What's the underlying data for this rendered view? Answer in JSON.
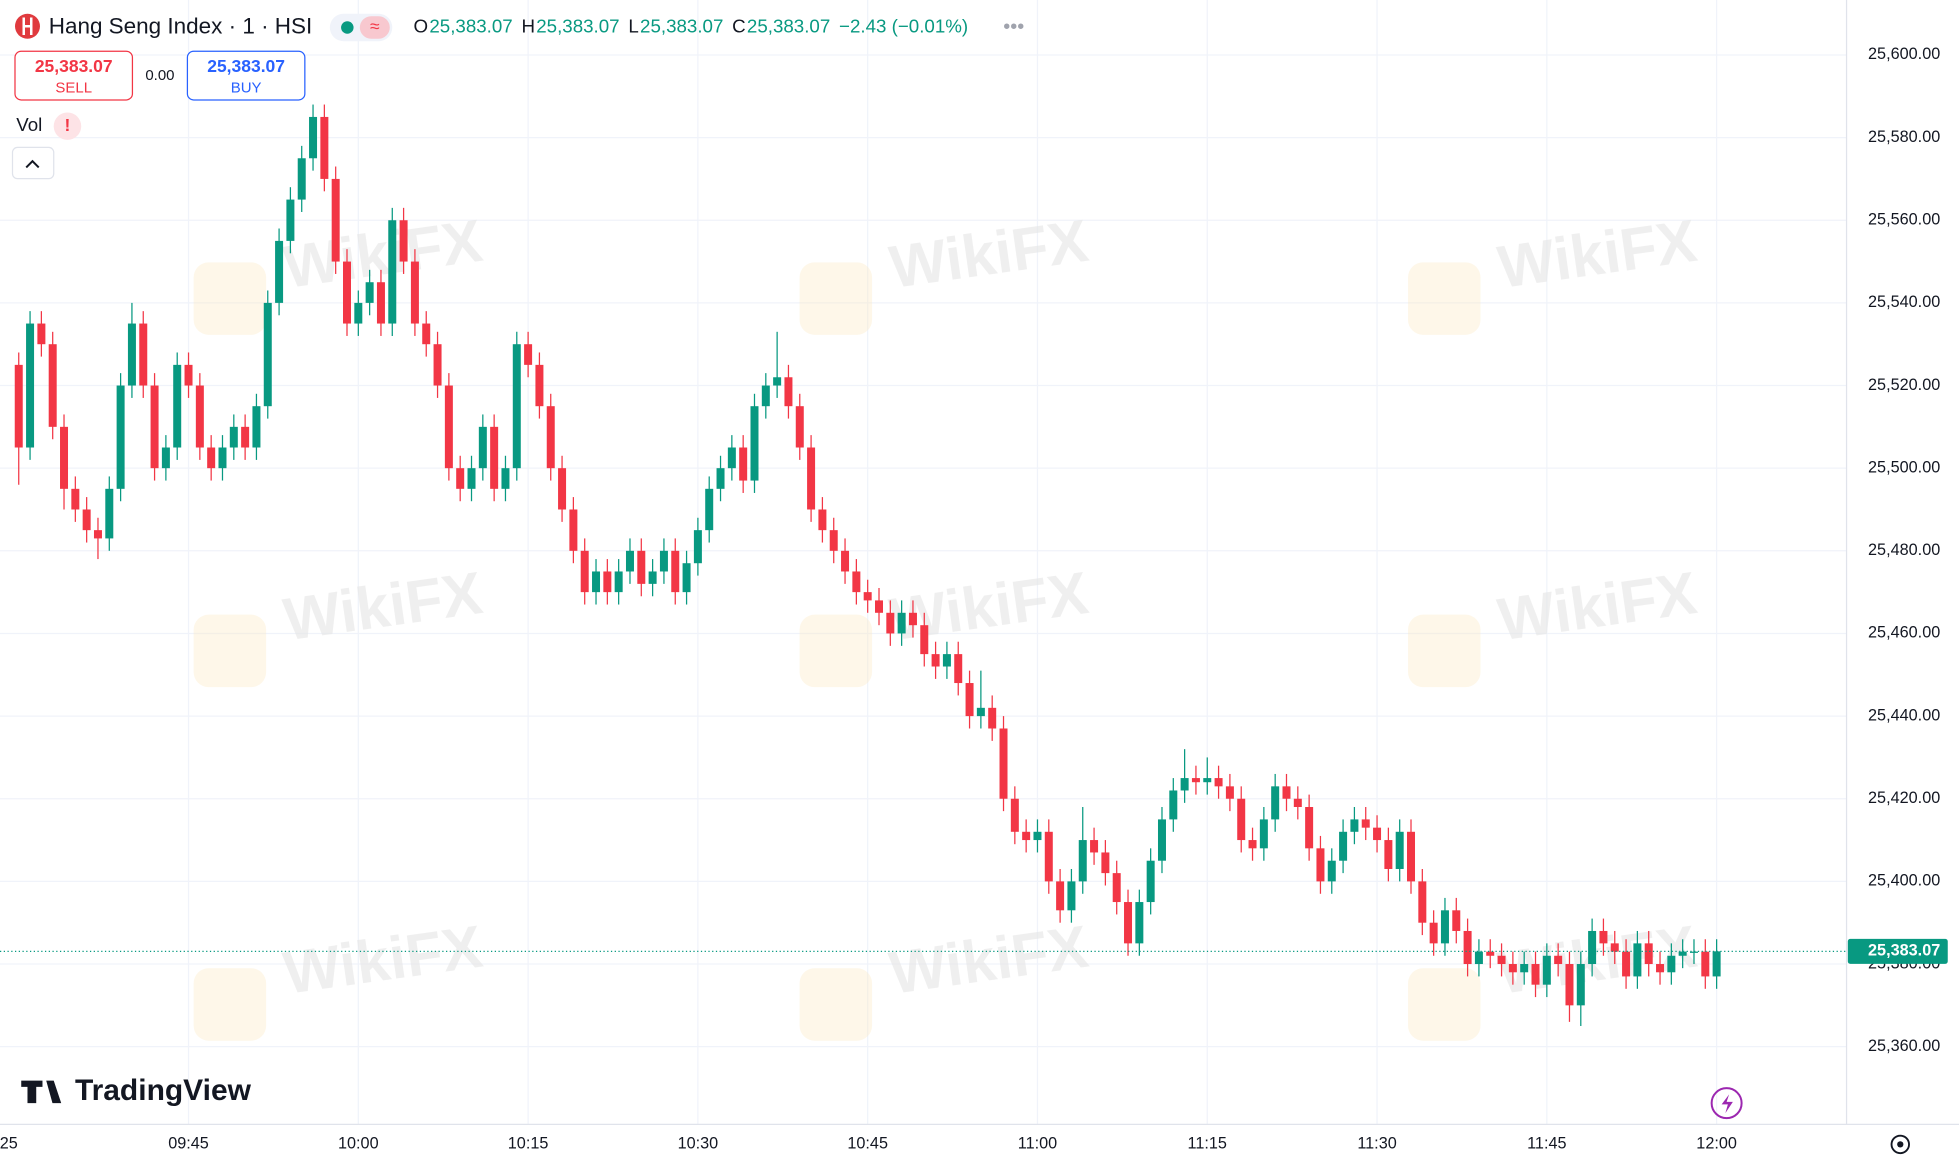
{
  "chart_data": {
    "type": "candlestick",
    "title": "Hang Seng Index · 1 · HSI",
    "ohlc_legend": [
      {
        "key": "O",
        "text": "25,383.07"
      },
      {
        "key": "H",
        "text": "25,383.07"
      },
      {
        "key": "L",
        "text": "25,383.07"
      },
      {
        "key": "C",
        "text": "25,383.07"
      }
    ],
    "change": "−2.43 (−0.01%)",
    "sell_price": "25,383.07",
    "sell_label": "SELL",
    "spread": "0.00",
    "buy_price": "25,383.07",
    "buy_label": "BUY",
    "volume_label": "Vol",
    "volume_alert": "!",
    "brand": "TradingView",
    "watermark": "WikiFX",
    "x_axis_edge_label": "25",
    "up_color": "#089981",
    "down_color": "#f23645",
    "grid": true,
    "last_price": 25383.07,
    "last_price_label": "25,383.07",
    "ylim": [
      25342.7,
      25613.3
    ],
    "yticks": [
      {
        "value": 25360,
        "label": "25,360.00"
      },
      {
        "value": 25380,
        "label": "25,380.00"
      },
      {
        "value": 25400,
        "label": "25,400.00"
      },
      {
        "value": 25420,
        "label": "25,420.00"
      },
      {
        "value": 25440,
        "label": "25,440.00"
      },
      {
        "value": 25460,
        "label": "25,460.00"
      },
      {
        "value": 25480,
        "label": "25,480.00"
      },
      {
        "value": 25500,
        "label": "25,500.00"
      },
      {
        "value": 25520,
        "label": "25,520.00"
      },
      {
        "value": 25540,
        "label": "25,540.00"
      },
      {
        "value": 25560,
        "label": "25,560.00"
      },
      {
        "value": 25580,
        "label": "25,580.00"
      },
      {
        "value": 25600,
        "label": "25,600.00"
      }
    ],
    "categories": [
      null,
      null,
      null,
      null,
      null,
      null,
      null,
      null,
      null,
      null,
      null,
      null,
      null,
      null,
      null,
      "09:45",
      null,
      null,
      null,
      null,
      null,
      null,
      null,
      null,
      null,
      null,
      null,
      null,
      null,
      null,
      "10:00",
      null,
      null,
      null,
      null,
      null,
      null,
      null,
      null,
      null,
      null,
      null,
      null,
      null,
      null,
      "10:15",
      null,
      null,
      null,
      null,
      null,
      null,
      null,
      null,
      null,
      null,
      null,
      null,
      null,
      null,
      "10:30",
      null,
      null,
      null,
      null,
      null,
      null,
      null,
      null,
      null,
      null,
      null,
      null,
      null,
      null,
      "10:45",
      null,
      null,
      null,
      null,
      null,
      null,
      null,
      null,
      null,
      null,
      null,
      null,
      null,
      null,
      "11:00",
      null,
      null,
      null,
      null,
      null,
      null,
      null,
      null,
      null,
      null,
      null,
      null,
      null,
      null,
      "11:15",
      null,
      null,
      null,
      null,
      null,
      null,
      null,
      null,
      null,
      null,
      null,
      null,
      null,
      null,
      "11:30",
      null,
      null,
      null,
      null,
      null,
      null,
      null,
      null,
      null,
      null,
      null,
      null,
      null,
      null,
      "11:45",
      null,
      null,
      null,
      null,
      null,
      null,
      null,
      null,
      null,
      null,
      null,
      null,
      null,
      null,
      "12:00"
    ],
    "open": [
      25525,
      25505,
      25535,
      25530,
      25510,
      25495,
      25490,
      25485,
      25483,
      25495,
      25520,
      25535,
      25520,
      25500,
      25505,
      25525,
      25520,
      25505,
      25500,
      25505,
      25510,
      25505,
      25515,
      25540,
      25555,
      25565,
      25575,
      25585,
      25570,
      25550,
      25535,
      25540,
      25545,
      25535,
      25560,
      25550,
      25535,
      25530,
      25520,
      25500,
      25495,
      25500,
      25510,
      25495,
      25500,
      25530,
      25525,
      25515,
      25500,
      25490,
      25480,
      25470,
      25475,
      25470,
      25475,
      25480,
      25472,
      25475,
      25480,
      25470,
      25477,
      25485,
      25495,
      25500,
      25505,
      25497,
      25515,
      25520,
      25522,
      25515,
      25505,
      25490,
      25485,
      25480,
      25475,
      25470,
      25468,
      25465,
      25460,
      25465,
      25462,
      25455,
      25452,
      25455,
      25448,
      25440,
      25442,
      25437,
      25420,
      25412,
      25410,
      25412,
      25400,
      25393,
      25400,
      25410,
      25407,
      25402,
      25395,
      25385,
      25395,
      25405,
      25415,
      25422,
      25425,
      25424,
      25425,
      25423,
      25420,
      25410,
      25408,
      25415,
      25423,
      25420,
      25418,
      25408,
      25400,
      25405,
      25412,
      25415,
      25413,
      25410,
      25403,
      25412,
      25400,
      25390,
      25385,
      25393,
      25388,
      25380,
      25383,
      25382,
      25380,
      25378,
      25380,
      25375,
      25382,
      25380,
      25370,
      25380,
      25388,
      25385,
      25383,
      25377,
      25385,
      25380,
      25378,
      25382,
      25383,
      25383,
      25377
    ],
    "high": [
      25528,
      25538,
      25538,
      25533,
      25513,
      25498,
      25493,
      25488,
      25498,
      25523,
      25540,
      25538,
      25523,
      25508,
      25528,
      25528,
      25523,
      25508,
      25508,
      25513,
      25513,
      25518,
      25543,
      25558,
      25568,
      25578,
      25588,
      25588,
      25573,
      25553,
      25543,
      25548,
      25548,
      25563,
      25563,
      25553,
      25538,
      25533,
      25523,
      25503,
      25503,
      25513,
      25513,
      25503,
      25533,
      25533,
      25528,
      25518,
      25503,
      25493,
      25483,
      25478,
      25478,
      25478,
      25483,
      25483,
      25478,
      25483,
      25483,
      25480,
      25488,
      25498,
      25503,
      25508,
      25508,
      25518,
      25523,
      25533,
      25525,
      25518,
      25508,
      25493,
      25488,
      25483,
      25478,
      25473,
      25471,
      25468,
      25468,
      25468,
      25465,
      25458,
      25458,
      25458,
      25451,
      25451,
      25445,
      25440,
      25423,
      25415,
      25415,
      25415,
      25403,
      25403,
      25418,
      25413,
      25410,
      25405,
      25398,
      25398,
      25408,
      25418,
      25425,
      25432,
      25428,
      25430,
      25428,
      25426,
      25423,
      25413,
      25418,
      25426,
      25426,
      25423,
      25421,
      25411,
      25408,
      25415,
      25418,
      25418,
      25416,
      25413,
      25415,
      25415,
      25403,
      25393,
      25396,
      25396,
      25391,
      25386,
      25386,
      25385,
      25383,
      25383,
      25383,
      25385,
      25385,
      25383,
      25383,
      25391,
      25391,
      25388,
      25386,
      25388,
      25388,
      25383,
      25385,
      25386,
      25386,
      25386,
      25386
    ],
    "low": [
      25496,
      25502,
      25527,
      25507,
      25490,
      25487,
      25482,
      25478,
      25480,
      25492,
      25517,
      25517,
      25497,
      25497,
      25502,
      25517,
      25502,
      25497,
      25497,
      25502,
      25502,
      25502,
      25512,
      25537,
      25552,
      25562,
      25572,
      25567,
      25547,
      25532,
      25532,
      25537,
      25532,
      25532,
      25547,
      25532,
      25527,
      25517,
      25497,
      25492,
      25492,
      25497,
      25492,
      25492,
      25497,
      25522,
      25512,
      25497,
      25487,
      25477,
      25467,
      25467,
      25467,
      25467,
      25472,
      25469,
      25469,
      25472,
      25467,
      25467,
      25474,
      25482,
      25492,
      25497,
      25494,
      25494,
      25512,
      25517,
      25512,
      25502,
      25487,
      25482,
      25477,
      25472,
      25467,
      25465,
      25462,
      25457,
      25457,
      25459,
      25452,
      25449,
      25449,
      25445,
      25437,
      25437,
      25434,
      25417,
      25409,
      25407,
      25407,
      25397,
      25390,
      25390,
      25397,
      25404,
      25399,
      25392,
      25382,
      25382,
      25392,
      25402,
      25412,
      25419,
      25421,
      25421,
      25420,
      25417,
      25407,
      25405,
      25405,
      25412,
      25417,
      25415,
      25405,
      25397,
      25397,
      25402,
      25409,
      25410,
      25407,
      25400,
      25400,
      25397,
      25387,
      25382,
      25382,
      25385,
      25377,
      25377,
      25379,
      25377,
      25375,
      25375,
      25372,
      25372,
      25377,
      25366,
      25365,
      25377,
      25382,
      25380,
      25374,
      25374,
      25377,
      25375,
      25375,
      25379,
      25380,
      25374,
      25374
    ],
    "close": [
      25505,
      25535,
      25530,
      25510,
      25495,
      25490,
      25485,
      25483,
      25495,
      25520,
      25535,
      25520,
      25500,
      25505,
      25525,
      25520,
      25505,
      25500,
      25505,
      25510,
      25505,
      25515,
      25540,
      25555,
      25565,
      25575,
      25585,
      25570,
      25550,
      25535,
      25540,
      25545,
      25535,
      25560,
      25550,
      25535,
      25530,
      25520,
      25500,
      25495,
      25500,
      25510,
      25495,
      25500,
      25530,
      25525,
      25515,
      25500,
      25490,
      25480,
      25470,
      25475,
      25470,
      25475,
      25480,
      25472,
      25475,
      25480,
      25470,
      25477,
      25485,
      25495,
      25500,
      25505,
      25497,
      25515,
      25520,
      25522,
      25515,
      25505,
      25490,
      25485,
      25480,
      25475,
      25470,
      25468,
      25465,
      25460,
      25465,
      25462,
      25455,
      25452,
      25455,
      25448,
      25440,
      25442,
      25437,
      25420,
      25412,
      25410,
      25412,
      25400,
      25393,
      25400,
      25410,
      25407,
      25402,
      25395,
      25385,
      25395,
      25405,
      25415,
      25422,
      25425,
      25424,
      25425,
      25423,
      25420,
      25410,
      25408,
      25415,
      25423,
      25420,
      25418,
      25408,
      25400,
      25405,
      25412,
      25415,
      25413,
      25410,
      25403,
      25412,
      25400,
      25390,
      25385,
      25393,
      25388,
      25380,
      25383,
      25382,
      25380,
      25378,
      25380,
      25375,
      25382,
      25380,
      25370,
      25380,
      25388,
      25385,
      25383,
      25377,
      25385,
      25380,
      25378,
      25382,
      25383,
      25383,
      25377,
      25383.07
    ]
  }
}
